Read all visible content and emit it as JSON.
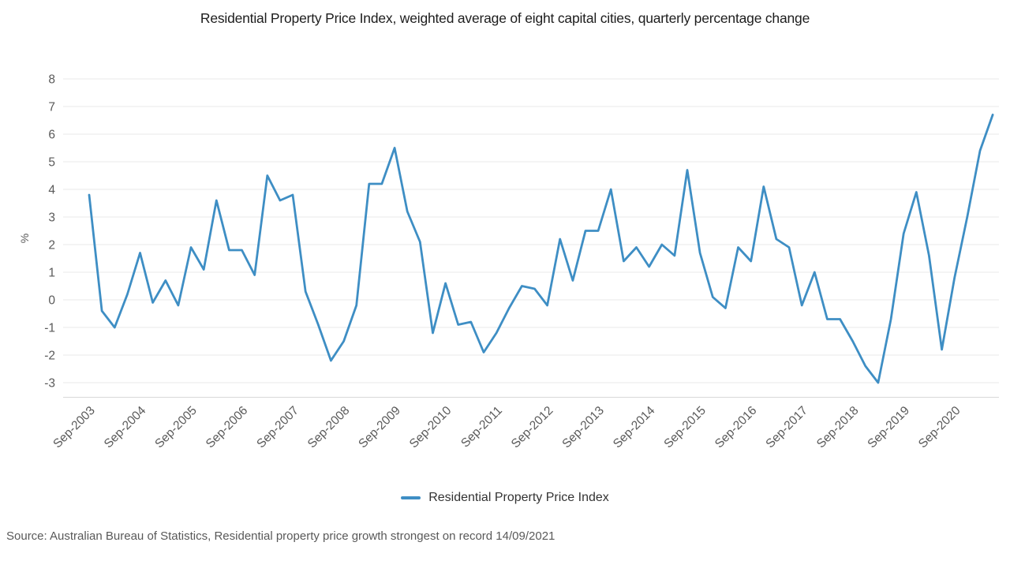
{
  "header": {
    "title": "Residential Property Price Index, weighted average of eight capital cities, quarterly percentage change"
  },
  "legend": {
    "label": "Residential Property Price Index"
  },
  "footer": {
    "source": "Source: Australian Bureau of Statistics, Residential property price growth strongest on record 14/09/2021"
  },
  "colors": {
    "line": "#3E8EC4",
    "grid": "#e9e9e9",
    "axis_line": "#d9d9d9",
    "tick_text": "#595959",
    "title_text": "#1d1d1d",
    "legend_text": "#333333",
    "source_text": "#595959"
  },
  "chart_data": {
    "type": "line",
    "title": "Residential Property Price Index, weighted average of eight capital cities, quarterly percentage change",
    "xlabel": "",
    "ylabel": "%",
    "ylim": [
      -3.5,
      8
    ],
    "yticks": [
      -3,
      -2,
      -1,
      0,
      1,
      2,
      3,
      4,
      5,
      6,
      7,
      8
    ],
    "grid": true,
    "legend_position": "bottom",
    "x_tick_labels": [
      "Sep-2003",
      "Sep-2004",
      "Sep-2005",
      "Sep-2006",
      "Sep-2007",
      "Sep-2008",
      "Sep-2009",
      "Sep-2010",
      "Sep-2011",
      "Sep-2012",
      "Sep-2013",
      "Sep-2014",
      "Sep-2015",
      "Sep-2016",
      "Sep-2017",
      "Sep-2018",
      "Sep-2019",
      "Sep-2020"
    ],
    "x": [
      "Sep-2003",
      "Dec-2003",
      "Mar-2004",
      "Jun-2004",
      "Sep-2004",
      "Dec-2004",
      "Mar-2005",
      "Jun-2005",
      "Sep-2005",
      "Dec-2005",
      "Mar-2006",
      "Jun-2006",
      "Sep-2006",
      "Dec-2006",
      "Mar-2007",
      "Jun-2007",
      "Sep-2007",
      "Dec-2007",
      "Mar-2008",
      "Jun-2008",
      "Sep-2008",
      "Dec-2008",
      "Mar-2009",
      "Jun-2009",
      "Sep-2009",
      "Dec-2009",
      "Mar-2010",
      "Jun-2010",
      "Sep-2010",
      "Dec-2010",
      "Mar-2011",
      "Jun-2011",
      "Sep-2011",
      "Dec-2011",
      "Mar-2012",
      "Jun-2012",
      "Sep-2012",
      "Dec-2012",
      "Mar-2013",
      "Jun-2013",
      "Sep-2013",
      "Dec-2013",
      "Mar-2014",
      "Jun-2014",
      "Sep-2014",
      "Dec-2014",
      "Mar-2015",
      "Jun-2015",
      "Sep-2015",
      "Dec-2015",
      "Mar-2016",
      "Jun-2016",
      "Sep-2016",
      "Dec-2016",
      "Mar-2017",
      "Jun-2017",
      "Sep-2017",
      "Dec-2017",
      "Mar-2018",
      "Jun-2018",
      "Sep-2018",
      "Dec-2018",
      "Mar-2019",
      "Jun-2019",
      "Sep-2019",
      "Dec-2019",
      "Mar-2020",
      "Jun-2020",
      "Sep-2020",
      "Dec-2020",
      "Mar-2021",
      "Jun-2021"
    ],
    "series": [
      {
        "name": "Residential Property Price Index",
        "color": "#3E8EC4",
        "values": [
          3.8,
          -0.4,
          -1.0,
          0.2,
          1.7,
          -0.1,
          0.7,
          -0.2,
          1.9,
          1.1,
          3.6,
          1.8,
          1.8,
          0.9,
          4.5,
          3.6,
          3.8,
          0.3,
          -0.9,
          -2.2,
          -1.5,
          -0.2,
          4.2,
          4.2,
          5.5,
          3.2,
          2.1,
          -1.2,
          0.6,
          -0.9,
          -0.8,
          -1.9,
          -1.2,
          -0.3,
          0.5,
          0.4,
          -0.2,
          2.2,
          0.7,
          2.5,
          2.5,
          4.0,
          1.4,
          1.9,
          1.2,
          2.0,
          1.6,
          4.7,
          1.7,
          0.1,
          -0.3,
          1.9,
          1.4,
          4.1,
          2.2,
          1.9,
          -0.2,
          1.0,
          -0.7,
          -0.7,
          -1.5,
          -2.4,
          -3.0,
          -0.7,
          2.4,
          3.9,
          1.6,
          -1.8,
          0.8,
          3.0,
          5.4,
          6.7
        ]
      }
    ]
  }
}
